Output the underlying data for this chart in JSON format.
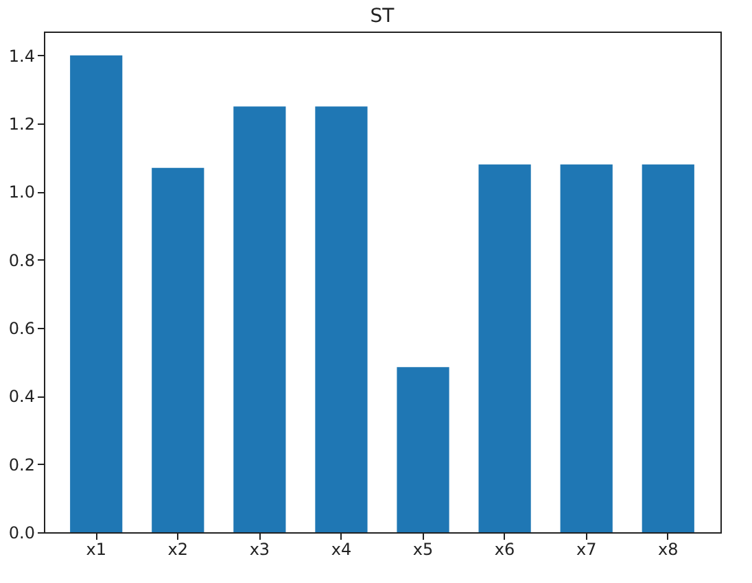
{
  "chart_data": {
    "type": "bar",
    "title": "ST",
    "categories": [
      "x1",
      "x2",
      "x3",
      "x4",
      "x5",
      "x6",
      "x7",
      "x8"
    ],
    "values": [
      1.4,
      1.07,
      1.25,
      1.25,
      0.485,
      1.08,
      1.08,
      1.08
    ],
    "color": "#1f77b4",
    "ylim": [
      0,
      1.47
    ],
    "yticks": [
      {
        "value": 0,
        "label": "0.0"
      },
      0.2,
      0.4,
      0.6,
      0.8,
      {
        "value": 1,
        "label": "1.0"
      },
      1.2,
      1.4
    ],
    "grid": false
  }
}
